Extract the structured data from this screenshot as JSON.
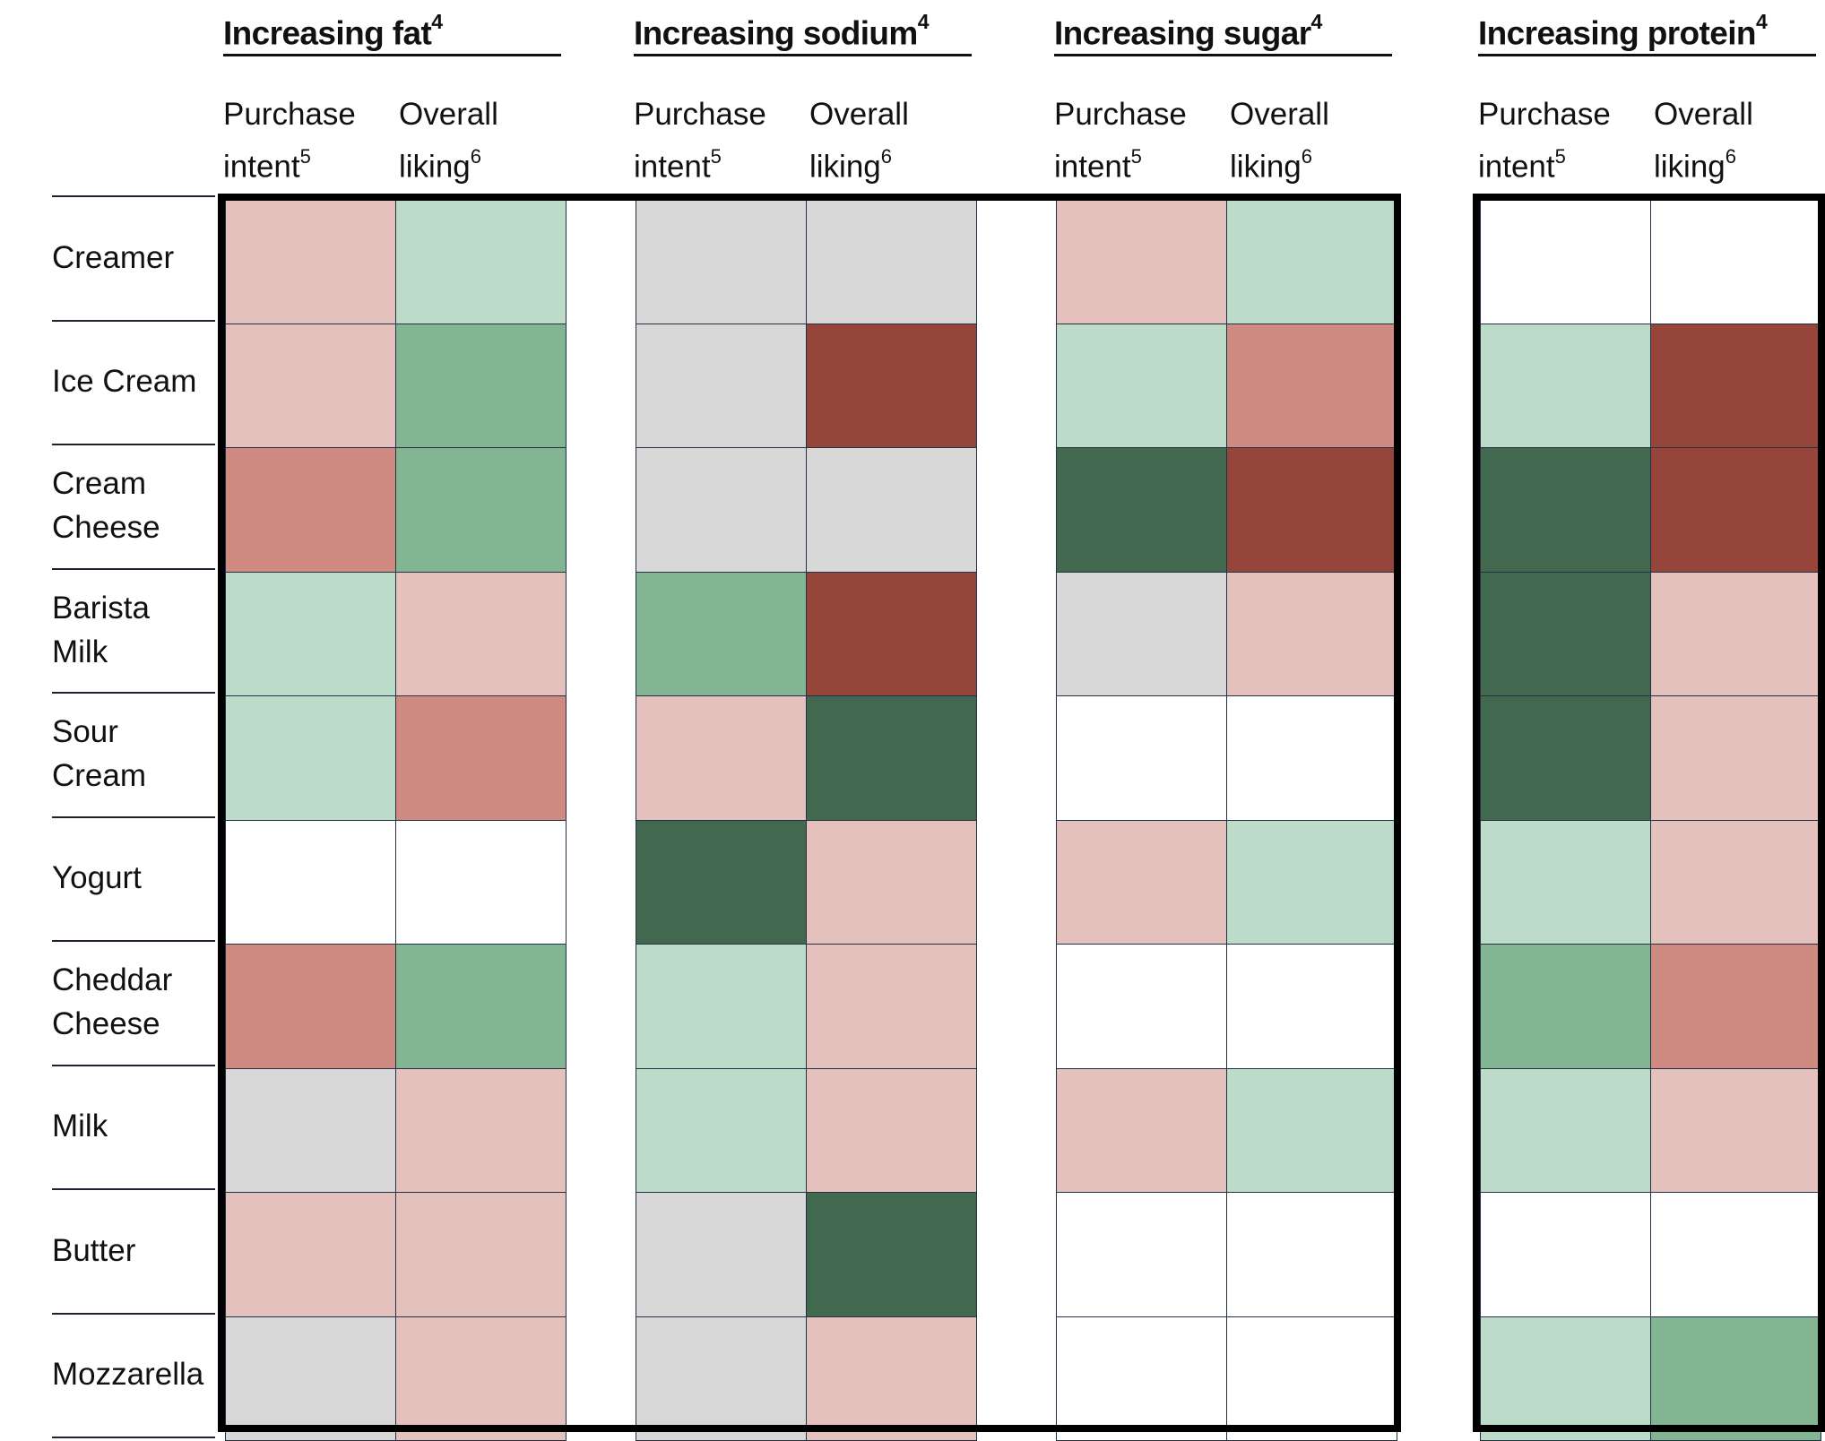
{
  "chart_data": {
    "type": "heatmap",
    "rows": [
      "Creamer",
      "Ice Cream",
      "Cream Cheese",
      "Barista Milk",
      "Sour Cream",
      "Yogurt",
      "Cheddar Cheese",
      "Milk",
      "Butter",
      "Mozzarella"
    ],
    "row_label_lines": [
      [
        "Creamer"
      ],
      [
        "Ice Cream"
      ],
      [
        "Cream",
        "Cheese"
      ],
      [
        "Barista",
        "Milk"
      ],
      [
        "Sour",
        "Cream"
      ],
      [
        "Yogurt"
      ],
      [
        "Cheddar",
        "Cheese"
      ],
      [
        "Milk"
      ],
      [
        "Butter"
      ],
      [
        "Mozzarella"
      ]
    ],
    "groups": [
      {
        "title": "Increasing fat",
        "title_sup": "4"
      },
      {
        "title": "Increasing sodium",
        "title_sup": "4"
      },
      {
        "title": "Increasing sugar",
        "title_sup": "4"
      },
      {
        "title": "Increasing protein",
        "title_sup": "4"
      }
    ],
    "measures": [
      {
        "line1": "Purchase",
        "line2": "intent",
        "sup": "5"
      },
      {
        "line1": "Overall",
        "line2": "liking",
        "sup": "6"
      }
    ],
    "palette": {
      "dark_green": "#42684f",
      "green": "#84b592",
      "light_green": "#bcdbc9",
      "gray": "#d8d8d8",
      "light_red": "#e4c1bd",
      "red": "#cf8b81",
      "dark_red": "#96453a",
      "none": "#ffffff"
    },
    "cells": {
      "Increasing fat": [
        [
          "light_red",
          "light_green"
        ],
        [
          "light_red",
          "green"
        ],
        [
          "red",
          "green"
        ],
        [
          "light_green",
          "light_red"
        ],
        [
          "light_green",
          "red"
        ],
        [
          "none",
          "none"
        ],
        [
          "red",
          "green"
        ],
        [
          "gray",
          "light_red"
        ],
        [
          "light_red",
          "light_red"
        ],
        [
          "gray",
          "light_red"
        ]
      ],
      "Increasing sodium": [
        [
          "gray",
          "gray"
        ],
        [
          "gray",
          "dark_red"
        ],
        [
          "gray",
          "gray"
        ],
        [
          "green",
          "dark_red"
        ],
        [
          "light_red",
          "dark_green"
        ],
        [
          "dark_green",
          "light_red"
        ],
        [
          "light_green",
          "light_red"
        ],
        [
          "light_green",
          "light_red"
        ],
        [
          "gray",
          "dark_green"
        ],
        [
          "gray",
          "light_red"
        ]
      ],
      "Increasing sugar": [
        [
          "light_red",
          "light_green"
        ],
        [
          "light_green",
          "red"
        ],
        [
          "dark_green",
          "dark_red"
        ],
        [
          "gray",
          "light_red"
        ],
        [
          "none",
          "none"
        ],
        [
          "light_red",
          "light_green"
        ],
        [
          "none",
          "none"
        ],
        [
          "light_red",
          "light_green"
        ],
        [
          "none",
          "none"
        ],
        [
          "none",
          "none"
        ]
      ],
      "Increasing protein": [
        [
          "none",
          "none"
        ],
        [
          "light_green",
          "dark_red"
        ],
        [
          "dark_green",
          "dark_red"
        ],
        [
          "dark_green",
          "light_red"
        ],
        [
          "dark_green",
          "light_red"
        ],
        [
          "light_green",
          "light_red"
        ],
        [
          "green",
          "red"
        ],
        [
          "light_green",
          "light_red"
        ],
        [
          "none",
          "none"
        ],
        [
          "light_green",
          "green"
        ]
      ]
    }
  }
}
